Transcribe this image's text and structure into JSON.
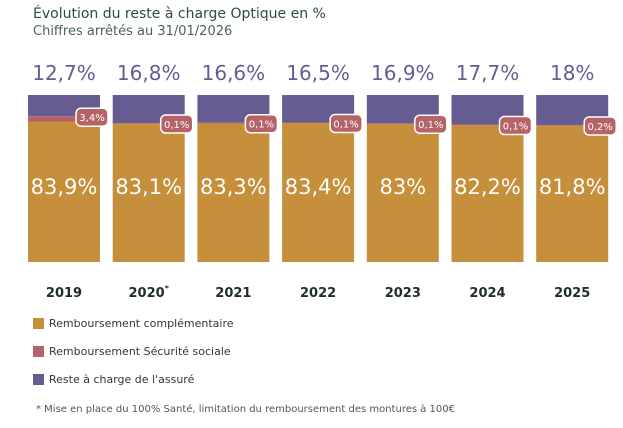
{
  "chart_data": {
    "type": "bar",
    "stacked": true,
    "title": "Évolution du reste à charge Optique en %",
    "subtitle": "Chiffres arrêtés au 31/01/2026",
    "categories": [
      "2019",
      "2020*",
      "2021",
      "2022",
      "2023",
      "2024",
      "2025"
    ],
    "category_labels": [
      "2019",
      "2020",
      "2021",
      "2022",
      "2023",
      "2024",
      "2025"
    ],
    "ylim": [
      0,
      100
    ],
    "series": [
      {
        "name": "Remboursement complémentaire",
        "color": "#c68f3c",
        "values": [
          83.9,
          83.1,
          83.3,
          83.4,
          83,
          82.2,
          81.8
        ],
        "labels": [
          "83,9%",
          "83,1%",
          "83,3%",
          "83,4%",
          "83%",
          "82,2%",
          "81,8%"
        ]
      },
      {
        "name": "Remboursement Sécurité sociale",
        "color": "#b56366",
        "values": [
          3.4,
          0.1,
          0.1,
          0.1,
          0.1,
          0.1,
          0.2
        ],
        "labels": [
          "3,4%",
          "0,1%",
          "0,1%",
          "0,1%",
          "0,1%",
          "0,1%",
          "0,2%"
        ]
      },
      {
        "name": "Reste à charge de l'assuré",
        "color": "#675c92",
        "values": [
          12.7,
          16.8,
          16.6,
          16.5,
          16.9,
          17.7,
          18
        ],
        "labels": [
          "12,7%",
          "16,8%",
          "16,6%",
          "16,5%",
          "16,9%",
          "17,7%",
          "18%"
        ]
      }
    ],
    "legend_position": "bottom-left",
    "footnote": "* Mise en place du 100% Santé, limitation du remboursement des montures à 100€",
    "asterisk": "*"
  }
}
